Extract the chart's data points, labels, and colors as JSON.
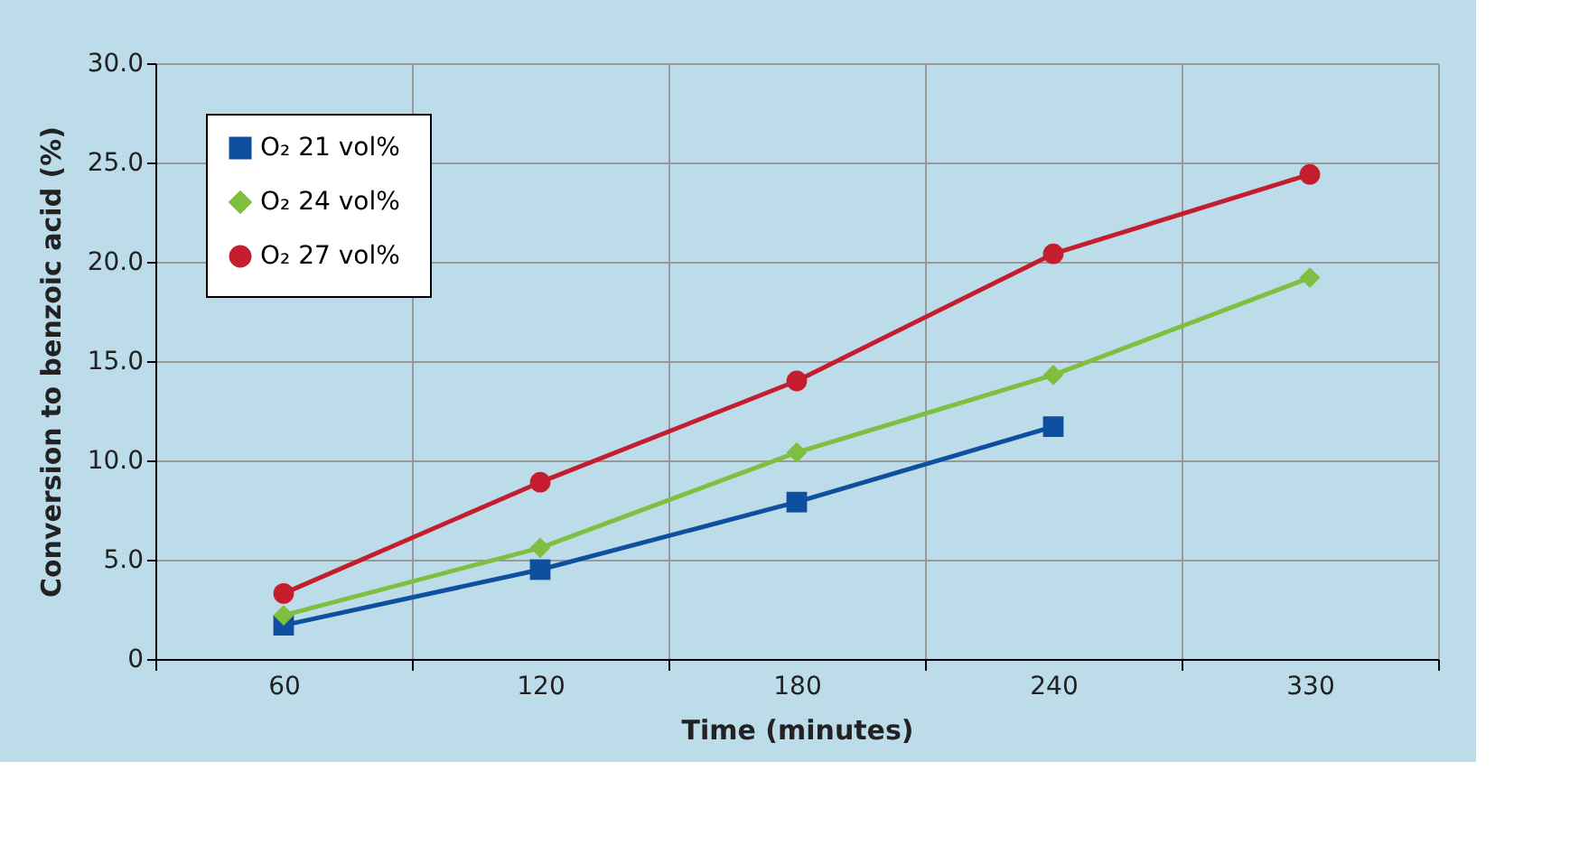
{
  "chart_data": {
    "type": "line",
    "xlabel": "Time (minutes)",
    "ylabel": "Conversion to benzoic acid (%)",
    "categories": [
      "60",
      "120",
      "180",
      "240",
      "330"
    ],
    "series": [
      {
        "name": "O₂  21 vol%",
        "color": "#0f4fa0",
        "marker": "square",
        "values": [
          1.7,
          4.5,
          7.9,
          11.7,
          null
        ]
      },
      {
        "name": "O₂  24 vol%",
        "color": "#7fbf3f",
        "marker": "diamond",
        "values": [
          2.2,
          5.6,
          10.4,
          14.3,
          19.2
        ]
      },
      {
        "name": "O₂  27 vol%",
        "color": "#c41e2e",
        "marker": "circle",
        "values": [
          3.3,
          8.9,
          14.0,
          20.4,
          24.4
        ]
      }
    ],
    "ylim": [
      0,
      30
    ],
    "yticks": [
      0,
      {
        "value": 5,
        "label": "5.0"
      },
      {
        "value": 10,
        "label": "10.0"
      },
      {
        "value": 15,
        "label": "15.0"
      },
      {
        "value": 20,
        "label": "20.0"
      },
      {
        "value": 25,
        "label": "25.0"
      },
      {
        "value": 30,
        "label": "30.0"
      }
    ],
    "grid": true,
    "legend": "top left",
    "line_style": "solid"
  }
}
